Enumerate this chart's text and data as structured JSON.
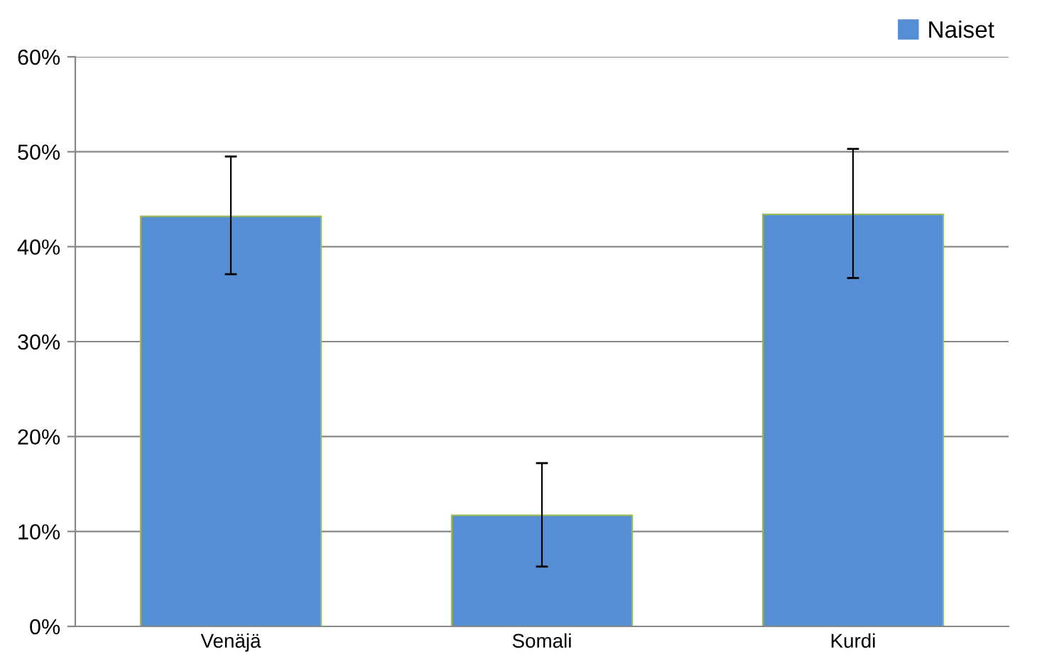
{
  "chart_data": {
    "type": "bar",
    "categories": [
      "Venäjä",
      "Somali",
      "Kurdi"
    ],
    "series": [
      {
        "name": "Naiset",
        "color": "#558ed5",
        "values": [
          43.2,
          11.7,
          43.4
        ],
        "errors": [
          [
            37.1,
            49.5
          ],
          [
            6.3,
            17.2
          ],
          [
            36.7,
            50.3
          ]
        ]
      }
    ],
    "ylim": [
      0,
      60
    ],
    "yticks": [
      {
        "value": 0,
        "label": "0%"
      },
      {
        "value": 10,
        "label": "10%"
      },
      {
        "value": 20,
        "label": "20%"
      },
      {
        "value": 30,
        "label": "30%"
      },
      {
        "value": 40,
        "label": "40%"
      },
      {
        "value": 50,
        "label": "50%"
      },
      {
        "value": 60,
        "label": "60%"
      }
    ],
    "grid": "y",
    "legend": "top right"
  }
}
